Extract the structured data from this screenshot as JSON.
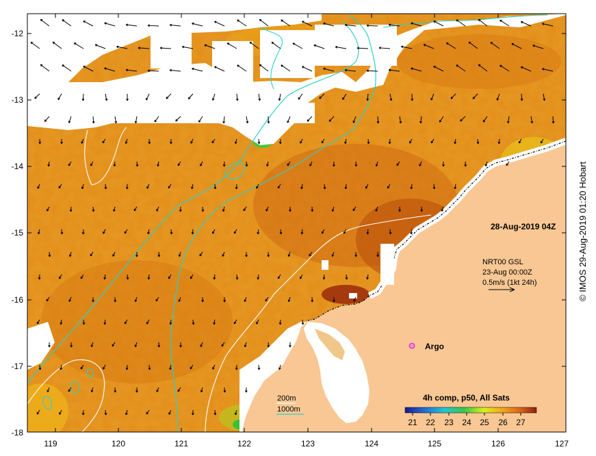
{
  "map": {
    "lon_ticks": [
      "119",
      "120",
      "121",
      "122",
      "123",
      "124",
      "125",
      "126",
      "127"
    ],
    "lat_ticks": [
      "-12",
      "-13",
      "-14",
      "-15",
      "-16",
      "-17",
      "-18"
    ]
  },
  "date_label": "28-Aug-2019 04Z",
  "currents": {
    "line1": "NRT00 GSL",
    "line2": "23-Aug 00:00Z",
    "line3": "0.5m/s (1kt 24h)"
  },
  "argo_label": "Argo",
  "isobaths": {
    "line1": "200m",
    "line2": "1000m"
  },
  "colorbar": {
    "title": "4h comp, p50, All Sats",
    "ticks": [
      "21",
      "22",
      "23",
      "24",
      "25",
      "26",
      "27"
    ]
  },
  "credit": "© IMOS 29-Aug-2019 01:20 Hobart",
  "colors": {
    "land": "#f9c897",
    "sea_warm": "#e08a14",
    "sea_hot": "#c45a0c",
    "isobath_200": "#ffffff",
    "isobath_1000": "#2ad1c8",
    "argo": "#e040e0"
  }
}
